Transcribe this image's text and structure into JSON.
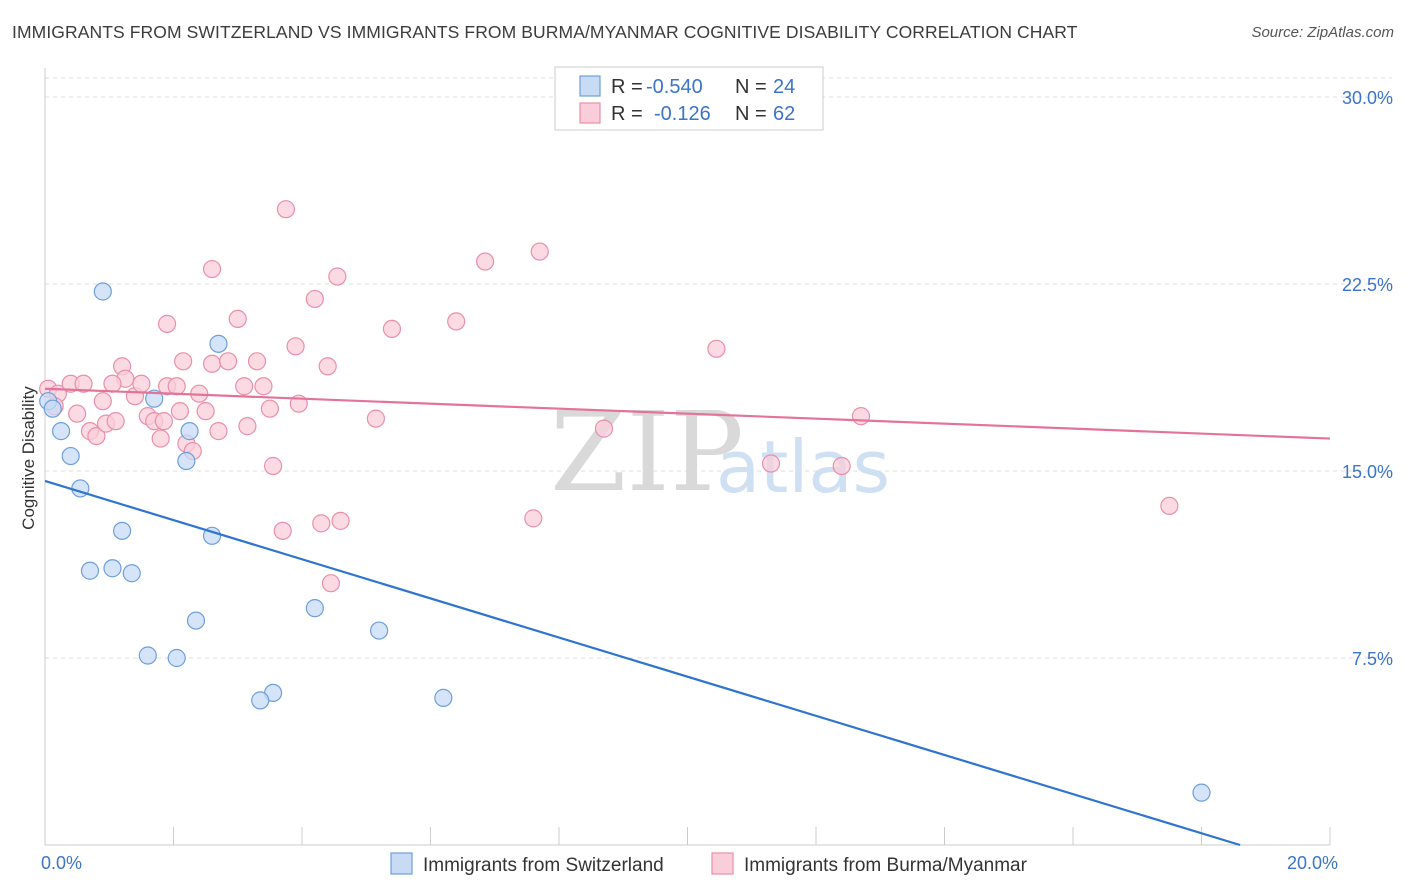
{
  "title": "IMMIGRANTS FROM SWITZERLAND VS IMMIGRANTS FROM BURMA/MYANMAR COGNITIVE DISABILITY CORRELATION CHART",
  "source": "Source: ZipAtlas.com",
  "watermark": {
    "zip": "ZIP",
    "atlas": "atlas"
  },
  "legend": {
    "rows": [
      {
        "r_label": "R =",
        "r_value": "-0.540",
        "n_label": "N =",
        "n_value": "24"
      },
      {
        "r_label": "R =",
        "r_value": "-0.126",
        "n_label": "N =",
        "n_value": "62"
      }
    ]
  },
  "colors": {
    "blue_fill": "#c7dbf5",
    "blue_stroke": "#6e9fdc",
    "blue_line": "#2f74d0",
    "pink_fill": "#f9cdd9",
    "pink_stroke": "#ea8fab",
    "pink_line": "#e4739a",
    "grid": "#dddddd",
    "axis_text": "#3b74c9"
  },
  "chart_data": {
    "type": "scatter",
    "title": "IMMIGRANTS FROM SWITZERLAND VS IMMIGRANTS FROM BURMA/MYANMAR COGNITIVE DISABILITY CORRELATION CHART",
    "xlabel": "",
    "ylabel": "Cognitive Disability",
    "xlim": [
      0,
      20
    ],
    "ylim": [
      0,
      30
    ],
    "x_ticks": [
      0,
      2,
      4,
      6,
      8,
      10,
      12,
      14,
      16,
      18,
      20
    ],
    "x_tick_labels": [
      {
        "value": 0,
        "label": "0.0%"
      },
      {
        "value": 20,
        "label": "20.0%"
      }
    ],
    "y_ticks": [
      {
        "value": 7.5,
        "label": "7.5%"
      },
      {
        "value": 15,
        "label": "15.0%"
      },
      {
        "value": 22.5,
        "label": "22.5%"
      },
      {
        "value": 30,
        "label": "30.0%"
      }
    ],
    "grid": true,
    "legend_position": "top-center",
    "series": [
      {
        "name": "Immigrants from Switzerland",
        "color": "blue",
        "r": -0.54,
        "n": 24,
        "points": [
          [
            0.05,
            17.8
          ],
          [
            0.12,
            17.5
          ],
          [
            0.25,
            16.6
          ],
          [
            0.4,
            15.6
          ],
          [
            0.55,
            14.3
          ],
          [
            0.9,
            22.2
          ],
          [
            1.7,
            17.9
          ],
          [
            2.7,
            20.1
          ],
          [
            2.25,
            16.6
          ],
          [
            2.2,
            15.4
          ],
          [
            1.2,
            12.6
          ],
          [
            2.6,
            12.4
          ],
          [
            0.7,
            11.0
          ],
          [
            1.05,
            11.1
          ],
          [
            1.35,
            10.9
          ],
          [
            2.35,
            9.0
          ],
          [
            1.6,
            7.6
          ],
          [
            2.05,
            7.5
          ],
          [
            4.2,
            9.5
          ],
          [
            5.2,
            8.6
          ],
          [
            3.55,
            6.1
          ],
          [
            3.35,
            5.8
          ],
          [
            6.2,
            5.9
          ],
          [
            18.0,
            2.1
          ]
        ],
        "trend": {
          "x": [
            0,
            18.6
          ],
          "y": [
            14.6,
            0
          ]
        }
      },
      {
        "name": "Immigrants from Burma/Myanmar",
        "color": "pink",
        "r": -0.126,
        "n": 62,
        "points": [
          [
            0.05,
            18.3
          ],
          [
            0.2,
            18.1
          ],
          [
            0.15,
            17.6
          ],
          [
            0.4,
            18.5
          ],
          [
            0.5,
            17.3
          ],
          [
            0.7,
            16.6
          ],
          [
            0.8,
            16.4
          ],
          [
            0.95,
            16.9
          ],
          [
            1.1,
            17.0
          ],
          [
            0.9,
            17.8
          ],
          [
            1.2,
            19.2
          ],
          [
            1.25,
            18.7
          ],
          [
            1.4,
            18.0
          ],
          [
            1.5,
            18.5
          ],
          [
            1.6,
            17.2
          ],
          [
            1.7,
            17.0
          ],
          [
            1.8,
            16.3
          ],
          [
            1.85,
            17.0
          ],
          [
            1.9,
            18.4
          ],
          [
            2.05,
            18.4
          ],
          [
            2.1,
            17.4
          ],
          [
            2.15,
            19.4
          ],
          [
            2.2,
            16.1
          ],
          [
            2.3,
            15.8
          ],
          [
            2.4,
            18.1
          ],
          [
            2.5,
            17.4
          ],
          [
            2.6,
            19.3
          ],
          [
            2.7,
            16.6
          ],
          [
            2.85,
            19.4
          ],
          [
            3.0,
            21.1
          ],
          [
            3.1,
            18.4
          ],
          [
            3.15,
            16.8
          ],
          [
            3.3,
            19.4
          ],
          [
            3.4,
            18.4
          ],
          [
            3.5,
            17.5
          ],
          [
            3.55,
            15.2
          ],
          [
            3.7,
            12.6
          ],
          [
            3.75,
            25.5
          ],
          [
            3.9,
            20.0
          ],
          [
            3.95,
            17.7
          ],
          [
            1.9,
            20.9
          ],
          [
            2.6,
            23.1
          ],
          [
            4.2,
            21.9
          ],
          [
            4.4,
            19.2
          ],
          [
            4.55,
            22.8
          ],
          [
            4.3,
            12.9
          ],
          [
            4.6,
            13.0
          ],
          [
            4.45,
            10.5
          ],
          [
            5.15,
            17.1
          ],
          [
            5.4,
            20.7
          ],
          [
            6.4,
            21.0
          ],
          [
            6.85,
            23.4
          ],
          [
            7.7,
            23.8
          ],
          [
            7.6,
            13.1
          ],
          [
            8.7,
            16.7
          ],
          [
            10.45,
            19.9
          ],
          [
            11.3,
            15.3
          ],
          [
            12.4,
            15.2
          ],
          [
            12.7,
            17.2
          ],
          [
            17.5,
            13.6
          ],
          [
            0.6,
            18.5
          ],
          [
            1.05,
            18.5
          ]
        ],
        "trend": {
          "x": [
            0,
            20
          ],
          "y": [
            18.3,
            16.3
          ]
        }
      }
    ]
  }
}
